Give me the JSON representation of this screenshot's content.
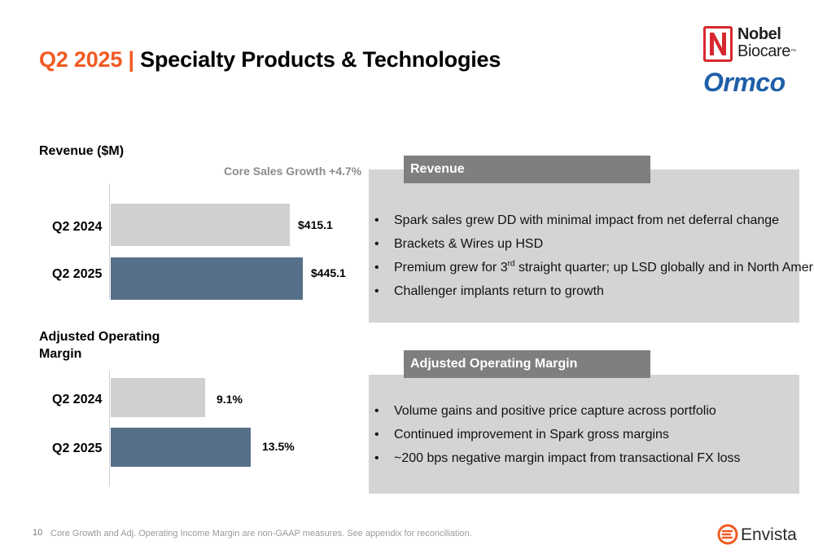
{
  "header": {
    "title_prefix": "Q2 2025",
    "title_separator": "|",
    "title_main": "Specialty Products & Technologies"
  },
  "logos": {
    "nobel_line1": "Nobel",
    "nobel_line2": "Biocare",
    "nobel_tm": "™",
    "ormco": "Ormco",
    "envista": "Envista"
  },
  "revenue_chart": {
    "label": "Revenue ($M)",
    "growth_note": "Core Sales Growth +4.7%"
  },
  "margin_chart": {
    "label_line1": "Adjusted Operating",
    "label_line2": "Margin"
  },
  "chart_data": [
    {
      "type": "bar",
      "orientation": "horizontal",
      "title": "Revenue ($M)",
      "annotation": "Core Sales Growth +4.7%",
      "categories": [
        "Q2 2024",
        "Q2 2025"
      ],
      "values": [
        415.1,
        445.1
      ],
      "value_labels": [
        "$415.1",
        "$445.1"
      ],
      "colors": [
        "#d0d0d0",
        "#577089"
      ],
      "xlim": [
        0,
        500
      ]
    },
    {
      "type": "bar",
      "orientation": "horizontal",
      "title": "Adjusted Operating Margin",
      "categories": [
        "Q2 2024",
        "Q2 2025"
      ],
      "values": [
        9.1,
        13.5
      ],
      "value_labels": [
        "9.1%",
        "13.5%"
      ],
      "colors": [
        "#d0d0d0",
        "#577089"
      ],
      "xlim": [
        0,
        20
      ]
    }
  ],
  "revenue_panel": {
    "header": "Revenue",
    "bullets": [
      "Spark sales grew DD with minimal impact from net deferral change",
      "Brackets & Wires up HSD",
      "Premium grew for 3",
      "Challenger implants return to growth"
    ],
    "premium_sup": "rd",
    "premium_rest": " straight quarter; up LSD globally and in North America"
  },
  "margin_panel": {
    "header": "Adjusted Operating Margin",
    "bullets": [
      "Volume gains and positive price capture across portfolio",
      "Continued improvement in Spark gross margins",
      "~200 bps negative margin impact from transactional FX loss"
    ]
  },
  "bullet_char": "•",
  "footer": {
    "page_number": "10",
    "note": "Core Growth and Adj. Operating Income Margin are non-GAAP measures.  See appendix for reconciliation."
  }
}
